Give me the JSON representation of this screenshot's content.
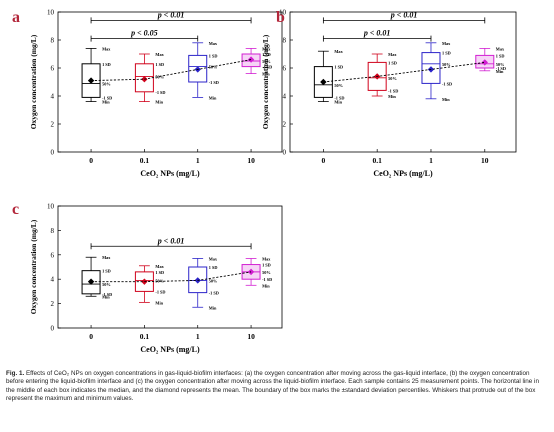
{
  "chart_data": [
    {
      "panel_letter": "a",
      "type": "box",
      "categories": [
        "0",
        "0.1",
        "1",
        "10"
      ],
      "xlabel": "CeO₂ NPs (mg/L)",
      "ylabel": "Oxygen concentration (mg/L)",
      "ylim": [
        0,
        10
      ],
      "yticks": [
        "0",
        "2",
        "4",
        "6",
        "8",
        "10"
      ],
      "box_color": [
        "#000000",
        "#d0021b",
        "#2b23c9",
        "#d21fd2"
      ],
      "boxes": [
        {
          "min": 3.6,
          "sd_low": 3.9,
          "median": 4.9,
          "sd_high": 6.3,
          "max": 7.4,
          "mean": 5.1
        },
        {
          "min": 3.6,
          "sd_low": 4.3,
          "median": 5.4,
          "sd_high": 6.3,
          "max": 7.0,
          "mean": 5.2
        },
        {
          "min": 3.9,
          "sd_low": 5.0,
          "median": 6.1,
          "sd_high": 6.9,
          "max": 7.8,
          "mean": 5.9
        },
        {
          "min": 5.6,
          "sd_low": 6.1,
          "median": 6.5,
          "sd_high": 7.0,
          "max": 7.4,
          "mean": 6.6
        }
      ],
      "brackets": [
        {
          "from": 0,
          "to": 3,
          "label": "p < 0.01",
          "y": 9.4
        },
        {
          "from": 0,
          "to": 2,
          "label": "p < 0.05",
          "y": 8.1
        }
      ]
    },
    {
      "panel_letter": "b",
      "type": "box",
      "categories": [
        "0",
        "0.1",
        "1",
        "10"
      ],
      "xlabel": "CeO₂ NPs (mg/L)",
      "ylabel": "Oxygen concentration (mg/L)",
      "ylim": [
        0,
        10
      ],
      "yticks": [
        "0",
        "2",
        "4",
        "6",
        "8",
        "10"
      ],
      "box_color": [
        "#000000",
        "#d0021b",
        "#2b23c9",
        "#d21fd2"
      ],
      "boxes": [
        {
          "min": 3.6,
          "sd_low": 3.9,
          "median": 4.8,
          "sd_high": 6.1,
          "max": 7.2,
          "mean": 5.0
        },
        {
          "min": 4.0,
          "sd_low": 4.4,
          "median": 5.3,
          "sd_high": 6.4,
          "max": 7.0,
          "mean": 5.4
        },
        {
          "min": 3.8,
          "sd_low": 4.9,
          "median": 6.3,
          "sd_high": 7.1,
          "max": 7.8,
          "mean": 5.9
        },
        {
          "min": 5.8,
          "sd_low": 6.0,
          "median": 6.3,
          "sd_high": 6.9,
          "max": 7.4,
          "mean": 6.4
        }
      ],
      "brackets": [
        {
          "from": 0,
          "to": 3,
          "label": "p < 0.01",
          "y": 9.4
        },
        {
          "from": 0,
          "to": 2,
          "label": "p < 0.01",
          "y": 8.1
        }
      ]
    },
    {
      "panel_letter": "c",
      "type": "box",
      "categories": [
        "0",
        "0.1",
        "1",
        "10"
      ],
      "xlabel": "CeO₂ NPs (mg/L)",
      "ylabel": "Oxygen concentration (mg/L)",
      "ylim": [
        0,
        10
      ],
      "yticks": [
        "0",
        "2",
        "4",
        "6",
        "8",
        "10"
      ],
      "box_color": [
        "#000000",
        "#d0021b",
        "#2b23c9",
        "#d21fd2"
      ],
      "boxes": [
        {
          "min": 2.6,
          "sd_low": 2.8,
          "median": 3.6,
          "sd_high": 4.7,
          "max": 5.8,
          "mean": 3.8
        },
        {
          "min": 2.1,
          "sd_low": 3.0,
          "median": 3.9,
          "sd_high": 4.6,
          "max": 5.1,
          "mean": 3.8
        },
        {
          "min": 1.7,
          "sd_low": 2.9,
          "median": 3.9,
          "sd_high": 5.0,
          "max": 5.7,
          "mean": 3.9
        },
        {
          "min": 3.5,
          "sd_low": 4.0,
          "median": 4.6,
          "sd_high": 5.2,
          "max": 5.7,
          "mean": 4.6
        }
      ],
      "brackets": [
        {
          "from": 0,
          "to": 3,
          "label": "p < 0.01",
          "y": 6.7
        }
      ]
    }
  ],
  "annot": {
    "max": "Max",
    "min": "Min",
    "sd_plus": "1 SD",
    "sd_minus": "-1 SD",
    "median_pct": "50%"
  },
  "caption": {
    "fig": "Fig. 1.",
    "text": "Effects of CeO₂ NPs on oxygen concentrations in gas-liquid-biofilm interfaces: (a) the oxygen concentration after moving across the gas-liquid interface, (b) the oxygen concentration before entering the liquid-biofilm interface and (c) the oxygen concentration after moving across the liquid-biofilm interface. Each sample contains 25 measurement points. The horizontal line in the middle of each box indicates the median, and the diamond represents the mean. The boundary of the box marks the ±standard deviation percentiles. Whiskers that protrude out of the box represent the maximum and minimum values."
  }
}
